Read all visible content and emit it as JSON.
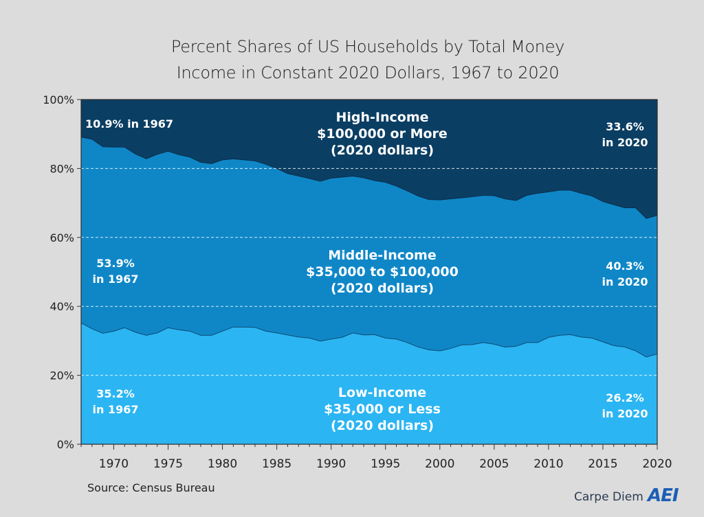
{
  "header": {
    "title_line1": "Percent Shares of US Households by Total Money",
    "title_line2": "Income in Constant 2020 Dollars, 1967 to 2020"
  },
  "footer": {
    "source": "Source: Census Bureau",
    "brand": "Carpe Diem",
    "logo": "AEI"
  },
  "colors": {
    "high": "#0b3e63",
    "middle": "#0f87c7",
    "low": "#2bb5f2",
    "text": "#ffffff"
  },
  "chart_data": {
    "type": "area",
    "stacked": true,
    "xlim": [
      1967,
      2020
    ],
    "ylim": [
      0,
      100
    ],
    "x_ticks": [
      1970,
      1975,
      1980,
      1985,
      1990,
      1995,
      2000,
      2005,
      2010,
      2015,
      2020
    ],
    "y_ticks": [
      "0%",
      "20%",
      "40%",
      "60%",
      "80%",
      "100%"
    ],
    "grid": "horizontal dashed",
    "x": [
      1967,
      1968,
      1969,
      1970,
      1971,
      1972,
      1973,
      1974,
      1975,
      1976,
      1977,
      1978,
      1979,
      1980,
      1981,
      1982,
      1983,
      1984,
      1985,
      1986,
      1987,
      1988,
      1989,
      1990,
      1991,
      1992,
      1993,
      1994,
      1995,
      1996,
      1997,
      1998,
      1999,
      2000,
      2001,
      2002,
      2003,
      2004,
      2005,
      2006,
      2007,
      2008,
      2009,
      2010,
      2011,
      2012,
      2013,
      2014,
      2015,
      2016,
      2017,
      2018,
      2019,
      2020
    ],
    "low_top": [
      35.2,
      33.5,
      32.2,
      32.8,
      33.8,
      32.5,
      31.6,
      32.3,
      33.8,
      33.2,
      32.8,
      31.6,
      31.6,
      32.8,
      34.0,
      34.0,
      33.9,
      32.8,
      32.3,
      31.7,
      31.1,
      30.8,
      29.9,
      30.5,
      31.0,
      32.3,
      31.7,
      31.8,
      30.8,
      30.5,
      29.5,
      28.2,
      27.4,
      27.1,
      27.8,
      28.8,
      28.9,
      29.5,
      29.0,
      28.2,
      28.4,
      29.5,
      29.5,
      31.0,
      31.6,
      31.8,
      31.1,
      30.8,
      29.7,
      28.6,
      28.2,
      27.1,
      25.3,
      26.2
    ],
    "middle_top": [
      89.1,
      88.5,
      86.3,
      86.2,
      86.2,
      84.2,
      82.8,
      84.1,
      85.0,
      84.0,
      83.3,
      81.8,
      81.4,
      82.5,
      82.8,
      82.5,
      82.2,
      81.2,
      80.0,
      78.5,
      77.8,
      77.1,
      76.3,
      77.2,
      77.5,
      77.8,
      77.3,
      76.5,
      76.0,
      74.9,
      73.5,
      72.0,
      71.0,
      70.9,
      71.2,
      71.5,
      71.8,
      72.2,
      72.1,
      71.2,
      70.7,
      72.2,
      72.8,
      73.2,
      73.7,
      73.7,
      72.8,
      72.0,
      70.4,
      69.5,
      68.6,
      68.6,
      65.5,
      66.4
    ],
    "series": [
      {
        "name": "Low-Income",
        "share_1967": "35.2%",
        "share_2020": "26.2%"
      },
      {
        "name": "Middle-Income",
        "share_1967": "53.9%",
        "share_2020": "40.3%"
      },
      {
        "name": "High-Income",
        "share_1967": "10.9%",
        "share_2020": "33.6%"
      }
    ],
    "annotations": {
      "high_center": [
        "High-Income",
        "$100,000 or More",
        "(2020 dollars)"
      ],
      "high_left": [
        "10.9% in 1967"
      ],
      "high_right": [
        "33.6%",
        "in 2020"
      ],
      "middle_center": [
        "Middle-Income",
        "$35,000 to $100,000",
        "(2020 dollars)"
      ],
      "middle_left": [
        "53.9%",
        "in 1967"
      ],
      "middle_right": [
        "40.3%",
        "in 2020"
      ],
      "low_center": [
        "Low-Income",
        "$35,000 or Less",
        "(2020 dollars)"
      ],
      "low_left": [
        "35.2%",
        "in 1967"
      ],
      "low_right": [
        "26.2%",
        "in 2020"
      ]
    }
  }
}
